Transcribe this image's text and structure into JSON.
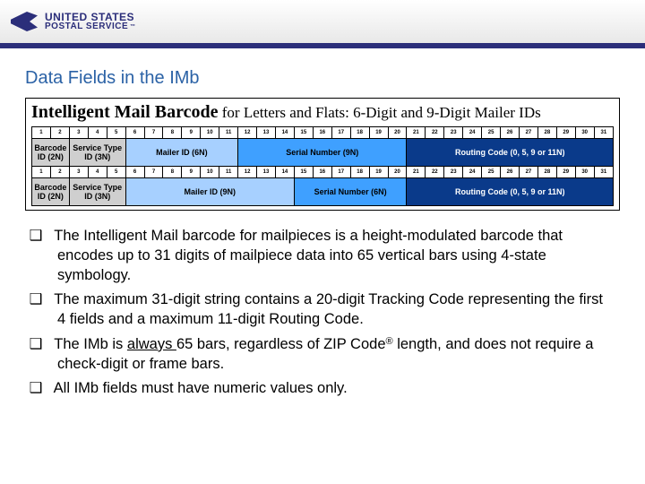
{
  "header": {
    "wordmark_line1": "UNITED STATES",
    "wordmark_line2": "POSTAL SERVICE",
    "accent_color": "#2b2e7a"
  },
  "section_title": "Data Fields in the IMb",
  "table": {
    "title_lead": "Intelligent Mail Barcode",
    "title_rest": " for Letters and Flats:  6-Digit and 9-Digit Mailer IDs",
    "num_cols": 31,
    "colors": {
      "grey": "#cfcfcf",
      "lblue": "#a7d0ff",
      "mblue": "#3fa0ff",
      "dblue": "#0a3a8a"
    },
    "rows": [
      {
        "type": "index",
        "start": 1,
        "end": 31
      },
      {
        "type": "segments",
        "cells": [
          {
            "span": 2,
            "label": "Barcode ID (2N)",
            "cls": "c-grey"
          },
          {
            "span": 3,
            "label": "Service Type ID (3N)",
            "cls": "c-grey"
          },
          {
            "span": 6,
            "label": "Mailer ID (6N)",
            "cls": "c-lblue"
          },
          {
            "span": 9,
            "label": "Serial Number (9N)",
            "cls": "c-mblue"
          },
          {
            "span": 11,
            "label": "Routing Code (0, 5, 9 or 11N)",
            "cls": "c-dblue"
          }
        ]
      },
      {
        "type": "index",
        "start": 1,
        "end": 31
      },
      {
        "type": "segments",
        "cells": [
          {
            "span": 2,
            "label": "Barcode ID (2N)",
            "cls": "c-grey"
          },
          {
            "span": 3,
            "label": "Service Type ID (3N)",
            "cls": "c-grey"
          },
          {
            "span": 9,
            "label": "Mailer ID (9N)",
            "cls": "c-lblue"
          },
          {
            "span": 6,
            "label": "Serial Number (6N)",
            "cls": "c-mblue"
          },
          {
            "span": 11,
            "label": "Routing Code (0, 5, 9 or 11N)",
            "cls": "c-dblue"
          }
        ]
      }
    ]
  },
  "bullets": [
    {
      "pre": "The Intelligent Mail barcode for mailpieces is a height-modulated barcode that encodes up to 31 digits of mailpiece data into 65 vertical bars using 4-state symbology."
    },
    {
      "pre": "The maximum 31-digit string contains a 20-digit Tracking Code representing the first 4 fields and a maximum 11-digit Routing Code."
    },
    {
      "pre": "The IMb is ",
      "ul": "always ",
      "post_html": "65 bars, regardless of ZIP Code<span class=\"reg\">®</span> length, and does not require a check-digit or frame bars."
    },
    {
      "pre": "All IMb fields must have numeric values only."
    }
  ]
}
